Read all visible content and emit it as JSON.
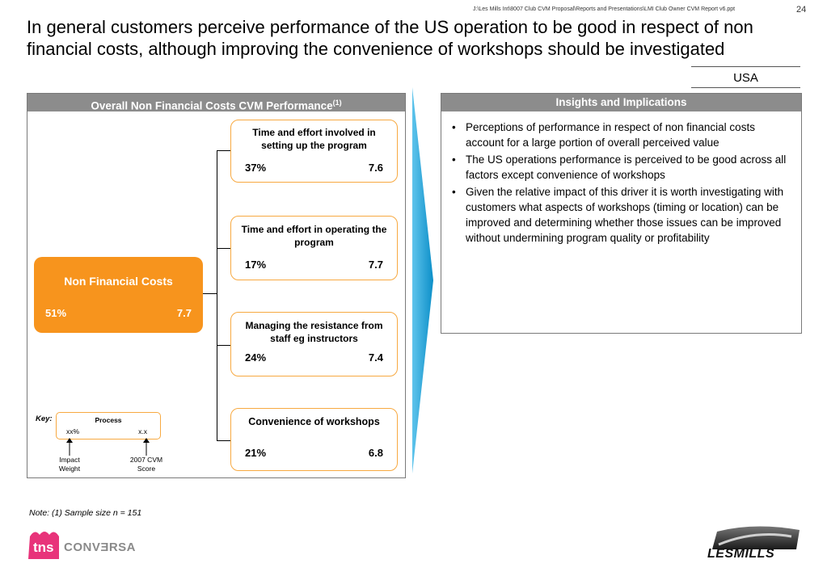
{
  "header": {
    "file_path": "J:\\Les Mills Int\\8007 Club CVM Proposal\\Reports and Presentations\\LMI Club Owner CVM Report v6.ppt",
    "page_number": "24",
    "title": "In general customers perceive performance of the US operation to be good in respect of non financial costs, although improving the convenience of workshops should be investigated",
    "region": "USA"
  },
  "left_panel": {
    "title": "Overall Non Financial Costs CVM Performance",
    "title_footnote": "(1)",
    "main": {
      "label": "Non Financial Costs",
      "weight": "51%",
      "score": "7.7"
    },
    "drivers": [
      {
        "label": "Time and effort involved  in setting up the program",
        "weight": "37%",
        "score": "7.6"
      },
      {
        "label": "Time and effort in operating the program",
        "weight": "17%",
        "score": "7.7"
      },
      {
        "label": "Managing the resistance from staff eg instructors",
        "weight": "24%",
        "score": "7.4"
      },
      {
        "label": "Convenience of workshops",
        "weight": "21%",
        "score": "6.8"
      }
    ],
    "key": {
      "label": "Key:",
      "box_title": "Process",
      "weight_placeholder": "xx%",
      "score_placeholder": "x.x",
      "weight_caption": "Impact Weight",
      "score_caption": "2007 CVM Score"
    }
  },
  "right_panel": {
    "title": "Insights and Implications",
    "bullets": [
      "Perceptions of performance in respect of non financial costs account for a large portion of overall perceived value",
      "The US operations performance is perceived to be good across all factors except convenience of workshops",
      "Given the relative impact of this driver it is worth investigating with customers what aspects of workshops (timing or location) can be improved and determining whether those issues can be improved without undermining program quality or profitability"
    ]
  },
  "footer": {
    "note": "Note: (1) Sample size n = 151",
    "logo_left_text_1": "tns",
    "logo_left_text_2": "CONVƎRSA",
    "logo_right_text": "LESMILLS"
  },
  "colors": {
    "accent_orange": "#f7941d",
    "header_grey": "#8c8c8c",
    "arrow_blue": "#1aa0d8",
    "tns_pink": "#e8337a"
  }
}
